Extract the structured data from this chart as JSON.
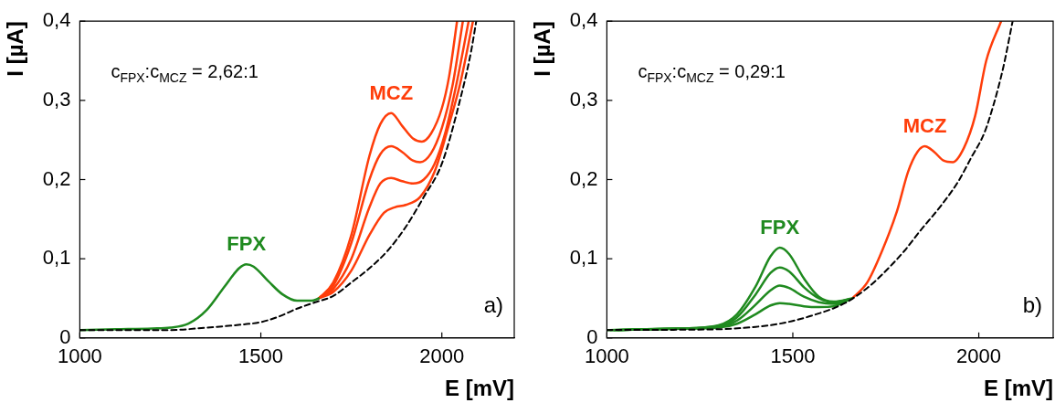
{
  "chart_data": [
    {
      "type": "line",
      "xlabel": "E [mV]",
      "ylabel": "I [µA]",
      "marker": "none",
      "xlim": [
        1000,
        2200
      ],
      "xticks": [
        1000,
        1500,
        2000
      ],
      "ylim": [
        0,
        0.4
      ],
      "yticks": [
        0,
        {
          "value": 0.1,
          "label": "0,1"
        },
        {
          "value": 0.2,
          "label": "0,2"
        },
        {
          "value": 0.3,
          "label": "0,3"
        },
        {
          "value": 0.4,
          "label": "0,4"
        }
      ],
      "annotations": [
        "c$_{FPX}$:c$_{MCZ}$ = 2,62:1",
        "a)"
      ],
      "series": [
        {
          "color": "#000000",
          "line_style": "dashed",
          "x": [
            1000,
            1250,
            1350,
            1450,
            1500,
            1550,
            1600,
            1650,
            1700,
            1750,
            1800,
            1850,
            1900,
            1950,
            2000,
            2050,
            2080,
            2095
          ],
          "values": [
            0.01,
            0.01,
            0.013,
            0.017,
            0.02,
            0.027,
            0.037,
            0.045,
            0.053,
            0.07,
            0.088,
            0.11,
            0.14,
            0.178,
            0.22,
            0.3,
            0.36,
            0.4
          ]
        },
        {
          "name": "FPX",
          "color": "#1f8a1f",
          "x": [
            1000,
            1100,
            1200,
            1250,
            1300,
            1350,
            1400,
            1440,
            1460,
            1480,
            1520,
            1560,
            1600,
            1640,
            1660
          ],
          "values": [
            0.01,
            0.011,
            0.012,
            0.013,
            0.018,
            0.035,
            0.065,
            0.088,
            0.093,
            0.09,
            0.072,
            0.055,
            0.047,
            0.047,
            0.05
          ]
        },
        {
          "name": "MCZ",
          "color": "#ff3d0a",
          "x": [
            1660,
            1700,
            1750,
            1800,
            1830,
            1860,
            1890,
            1920,
            1945,
            1970,
            2000,
            2020,
            2042
          ],
          "values": [
            0.05,
            0.07,
            0.13,
            0.23,
            0.27,
            0.284,
            0.268,
            0.252,
            0.248,
            0.258,
            0.29,
            0.33,
            0.4
          ]
        },
        {
          "color": "#ff3d0a",
          "x": [
            1660,
            1700,
            1750,
            1800,
            1830,
            1860,
            1890,
            1920,
            1940,
            1970,
            2000,
            2030,
            2058
          ],
          "values": [
            0.05,
            0.066,
            0.12,
            0.2,
            0.232,
            0.242,
            0.235,
            0.224,
            0.222,
            0.233,
            0.265,
            0.32,
            0.4
          ]
        },
        {
          "color": "#ff3d0a",
          "x": [
            1660,
            1700,
            1750,
            1800,
            1830,
            1860,
            1890,
            1920,
            1950,
            1980,
            2010,
            2040,
            2074
          ],
          "values": [
            0.05,
            0.062,
            0.1,
            0.165,
            0.195,
            0.202,
            0.198,
            0.195,
            0.2,
            0.22,
            0.26,
            0.32,
            0.4
          ]
        },
        {
          "color": "#ff3d0a",
          "x": [
            1660,
            1700,
            1750,
            1800,
            1840,
            1870,
            1900,
            1940,
            1980,
            2020,
            2050,
            2086
          ],
          "values": [
            0.05,
            0.058,
            0.085,
            0.13,
            0.158,
            0.165,
            0.168,
            0.178,
            0.21,
            0.27,
            0.32,
            0.4
          ]
        }
      ]
    },
    {
      "type": "line",
      "xlabel": "E [mV]",
      "ylabel": "I [µA]",
      "marker": "none",
      "xlim": [
        1000,
        2200
      ],
      "xticks": [
        1000,
        1500,
        2000
      ],
      "ylim": [
        0,
        0.4
      ],
      "yticks": [
        0,
        {
          "value": 0.1,
          "label": "0,1"
        },
        {
          "value": 0.2,
          "label": "0,2"
        },
        {
          "value": 0.3,
          "label": "0,3"
        },
        {
          "value": 0.4,
          "label": "0,4"
        }
      ],
      "annotations": [
        "c$_{FPX}$:c$_{MCZ}$ = 0,29:1",
        "b)"
      ],
      "series": [
        {
          "color": "#000000",
          "line_style": "dashed",
          "x": [
            1000,
            1300,
            1400,
            1465,
            1550,
            1640,
            1700,
            1740,
            1800,
            1842,
            1900,
            1944,
            1980,
            2015,
            2040,
            2066,
            2091
          ],
          "values": [
            0.01,
            0.011,
            0.014,
            0.018,
            0.028,
            0.044,
            0.063,
            0.08,
            0.11,
            0.135,
            0.168,
            0.197,
            0.228,
            0.259,
            0.295,
            0.342,
            0.4
          ]
        },
        {
          "name": "FPX",
          "color": "#1f8a1f",
          "x": [
            1000,
            1200,
            1300,
            1350,
            1400,
            1440,
            1465,
            1490,
            1530,
            1570,
            1610,
            1660
          ],
          "values": [
            0.01,
            0.012,
            0.016,
            0.03,
            0.065,
            0.103,
            0.114,
            0.106,
            0.075,
            0.052,
            0.046,
            0.05
          ]
        },
        {
          "color": "#1f8a1f",
          "x": [
            1010,
            1200,
            1300,
            1350,
            1400,
            1440,
            1465,
            1490,
            1530,
            1570,
            1610,
            1655
          ],
          "values": [
            0.01,
            0.012,
            0.015,
            0.026,
            0.055,
            0.082,
            0.089,
            0.084,
            0.064,
            0.05,
            0.045,
            0.049
          ]
        },
        {
          "color": "#1f8a1f",
          "x": [
            1020,
            1200,
            1300,
            1350,
            1400,
            1440,
            1465,
            1490,
            1530,
            1570,
            1610,
            1650
          ],
          "values": [
            0.01,
            0.012,
            0.014,
            0.022,
            0.042,
            0.06,
            0.066,
            0.063,
            0.052,
            0.045,
            0.043,
            0.048
          ]
        },
        {
          "color": "#1f8a1f",
          "x": [
            1030,
            1200,
            1300,
            1350,
            1400,
            1440,
            1465,
            1490,
            1530,
            1570,
            1610,
            1645
          ],
          "values": [
            0.01,
            0.012,
            0.013,
            0.018,
            0.03,
            0.041,
            0.044,
            0.043,
            0.04,
            0.039,
            0.04,
            0.047
          ]
        },
        {
          "name": "MCZ",
          "color": "#ff3d0a",
          "x": [
            1660,
            1700,
            1740,
            1780,
            1810,
            1835,
            1855,
            1880,
            1905,
            1930,
            1960,
            1990,
            2020,
            2060
          ],
          "values": [
            0.05,
            0.07,
            0.11,
            0.16,
            0.21,
            0.235,
            0.242,
            0.235,
            0.224,
            0.222,
            0.24,
            0.28,
            0.35,
            0.4
          ]
        }
      ]
    }
  ]
}
